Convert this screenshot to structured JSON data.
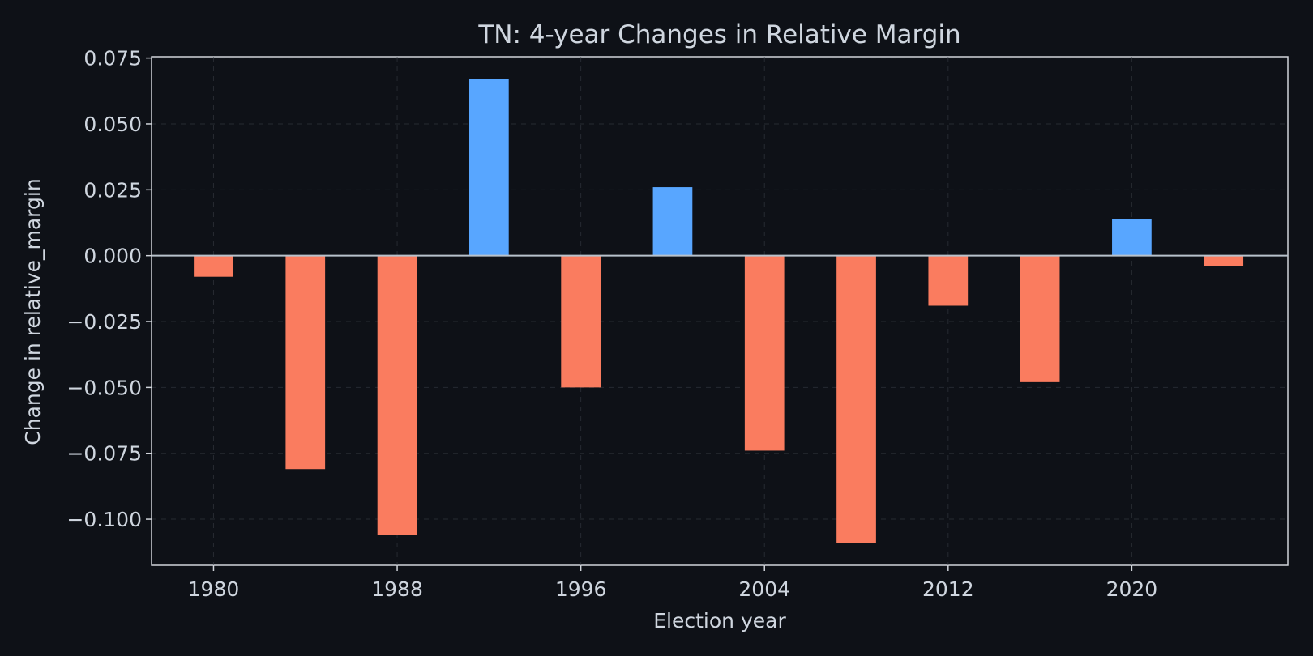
{
  "chart_data": {
    "type": "bar",
    "title": "TN: 4-year Changes in Relative Margin",
    "xlabel": "Election year",
    "ylabel": "Change in relative_margin",
    "x": [
      1980,
      1984,
      1988,
      1992,
      1996,
      2000,
      2004,
      2008,
      2012,
      2016,
      2020,
      2024
    ],
    "values": [
      -0.008,
      -0.081,
      -0.106,
      0.067,
      -0.05,
      0.026,
      -0.074,
      -0.109,
      -0.019,
      -0.048,
      0.014,
      -0.004
    ],
    "xticks": [
      "1980",
      "1988",
      "1996",
      "2004",
      "2012",
      "2020"
    ],
    "yticks": [
      "0.075",
      "0.050",
      "0.025",
      "0.000",
      "−0.025",
      "−0.050",
      "−0.075",
      "−0.100"
    ],
    "xlim": [
      1977.3,
      2026.8
    ],
    "ylim": [
      -0.1175,
      0.0755
    ],
    "grid": true,
    "colors": {
      "positive": "#58a6ff",
      "negative": "#fa7c5f",
      "background": "#0e1117"
    }
  }
}
